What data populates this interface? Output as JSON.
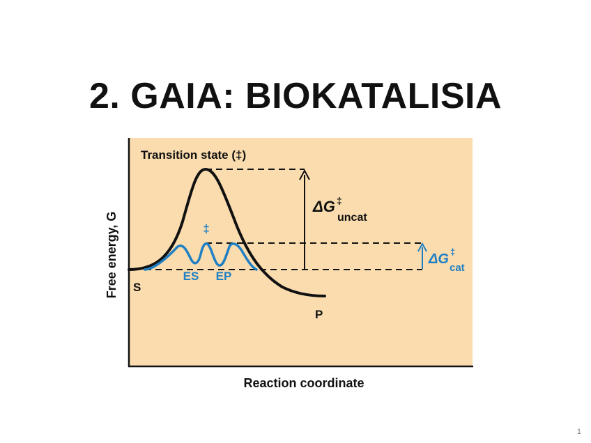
{
  "slide": {
    "title": "2. GAIA: BIOKATALISIA",
    "page_number": "1"
  },
  "diagram": {
    "y_axis_label": "Free energy, G",
    "x_axis_label": "Reaction coordinate",
    "transition_state_label": "Transition state (‡)",
    "catalyzed_transition_marker": "‡",
    "substrate_label": "S",
    "product_label": "P",
    "enzyme_substrate_label": "ES",
    "enzyme_product_label": "EP",
    "delta_g_uncat": {
      "symbol": "ΔG",
      "superscript": "‡",
      "subscript": "uncat"
    },
    "delta_g_cat": {
      "symbol": "ΔG",
      "superscript": "‡",
      "subscript": "cat"
    },
    "colors": {
      "panel_background": "#fadcae",
      "uncatalyzed_curve": "#111111",
      "catalyzed_curve": "#1f7fc4",
      "axes": "#111111"
    }
  }
}
